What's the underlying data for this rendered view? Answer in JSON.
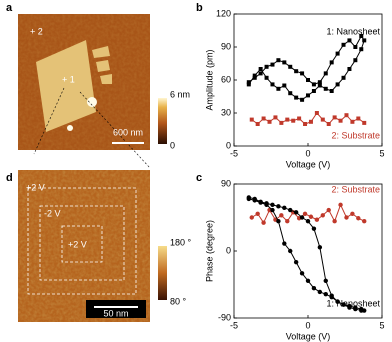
{
  "panel_labels": [
    "a",
    "b",
    "c",
    "d"
  ],
  "images": [
    {
      "labels": [
        "+ 2",
        "+ 1"
      ],
      "scale_bar": "600 nm",
      "colorbar": [
        "6 nm",
        "0"
      ]
    },
    {
      "labels": [
        "+2 V",
        "-2 V",
        "+2 V"
      ],
      "scale_bar": "50 nm",
      "colorbar": [
        "180 °",
        "80 °"
      ]
    }
  ],
  "chart_data": [
    {
      "type": "line",
      "xlabel": "Voltage (V)",
      "ylabel": "Amplitude (pm)",
      "xlim": [
        -5,
        5
      ],
      "xticks": [
        -5,
        0,
        5
      ],
      "ylim": [
        0,
        120
      ],
      "yticks": [
        0,
        30,
        60,
        90,
        120
      ],
      "marker": "square",
      "series": [
        {
          "name": "1: Nanosheet",
          "color": "#000000",
          "x": [
            -4,
            -3.6,
            -3.2,
            -2.8,
            -2.4,
            -2,
            -1.6,
            -1.2,
            -0.8,
            -0.4,
            0,
            0.4,
            0.8,
            1.2,
            1.6,
            2,
            2.4,
            2.8,
            3.2,
            3.6,
            3.8,
            3.6,
            3.2,
            2.8,
            2.4,
            2,
            1.6,
            1.2,
            0.8,
            0.4,
            0,
            -0.4,
            -0.8,
            -1.2,
            -1.6,
            -2,
            -2.4,
            -2.8,
            -3.2,
            -3.6,
            -4
          ],
          "values": [
            58,
            62,
            66,
            72,
            74,
            78,
            76,
            72,
            68,
            66,
            60,
            56,
            58,
            66,
            76,
            84,
            92,
            96,
            90,
            100,
            96,
            88,
            78,
            70,
            62,
            56,
            50,
            52,
            55,
            50,
            46,
            42,
            44,
            48,
            55,
            52,
            56,
            62,
            70,
            64,
            56
          ]
        },
        {
          "name": "2: Substrate",
          "color": "#c0392b",
          "x": [
            -3.8,
            -3.4,
            -3,
            -2.6,
            -2.2,
            -1.8,
            -1.4,
            -1,
            -0.6,
            -0.2,
            0.2,
            0.6,
            1,
            1.4,
            1.8,
            2.2,
            2.6,
            3,
            3.4,
            3.8
          ],
          "values": [
            24,
            20,
            25,
            22,
            26,
            21,
            24,
            23,
            25,
            20,
            22,
            30,
            24,
            20,
            26,
            23,
            28,
            22,
            25,
            21
          ]
        }
      ]
    },
    {
      "type": "line",
      "xlabel": "Voltage (V)",
      "ylabel": "Phase (degree)",
      "xlim": [
        -5,
        5
      ],
      "xticks": [
        -5,
        0,
        5
      ],
      "ylim": [
        -90,
        90
      ],
      "yticks": [
        -90,
        0,
        90
      ],
      "marker": "circle",
      "series": [
        {
          "name": "2: Substrate",
          "color": "#c0392b",
          "x": [
            -3.8,
            -3.4,
            -3,
            -2.6,
            -2.2,
            -1.8,
            -1.4,
            -1,
            -0.6,
            -0.2,
            0.2,
            0.6,
            1,
            1.4,
            1.8,
            2.2,
            2.6,
            3,
            3.4,
            3.8
          ],
          "values": [
            45,
            50,
            38,
            55,
            42,
            48,
            40,
            52,
            44,
            50,
            46,
            42,
            48,
            55,
            40,
            62,
            45,
            50,
            44,
            40
          ]
        },
        {
          "name": "1: Nanosheet",
          "color": "#000000",
          "x": [
            -4,
            -3.6,
            -3.2,
            -2.8,
            -2.4,
            -2,
            -1.6,
            -1.2,
            -0.8,
            -0.4,
            0,
            0.4,
            0.8,
            1.2,
            1.6,
            2,
            2.4,
            2.8,
            3.2,
            3.6,
            3.8,
            3.6,
            3.2,
            2.8,
            2.4,
            2,
            1.6,
            1.2,
            0.8,
            0.4,
            0,
            -0.4,
            -0.8,
            -1.2,
            -1.6,
            -2,
            -2.4,
            -2.8,
            -3.2,
            -3.6,
            -4
          ],
          "values": [
            72,
            70,
            66,
            64,
            62,
            60,
            58,
            55,
            52,
            45,
            40,
            30,
            5,
            -40,
            -60,
            -68,
            -72,
            -74,
            -76,
            -78,
            -80,
            -80,
            -78,
            -76,
            -72,
            -68,
            -62,
            -58,
            -55,
            -50,
            -40,
            -30,
            -15,
            0,
            10,
            40,
            55,
            62,
            65,
            68,
            70
          ]
        }
      ]
    }
  ]
}
